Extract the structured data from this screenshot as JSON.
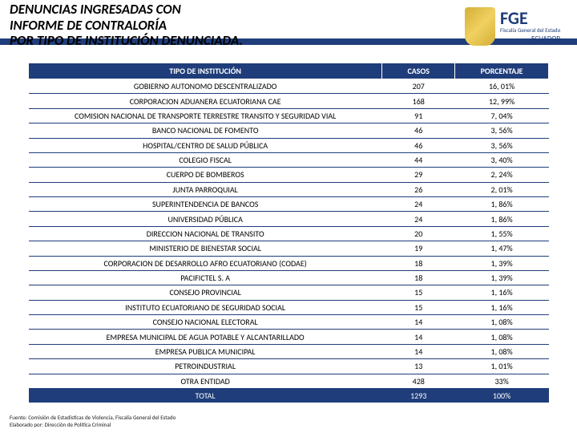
{
  "header": {
    "title_line1": "DENUNCIAS INGRESADAS CON",
    "title_line2": "INFORME DE CONTRALORÍA",
    "title_line3": "POR TIPO DE INSTITUCIÓN DENUNCIADA."
  },
  "logo": {
    "acronym": "FGE",
    "sub1": "Fiscalía General del Estado",
    "country": "ECUADOR"
  },
  "table": {
    "headers": {
      "institution": "TIPO DE INSTITUCIÓN",
      "cases": "CASOS",
      "percentage": "PORCENTAJE"
    },
    "rows": [
      {
        "inst": "GOBIERNO AUTONOMO DESCENTRALIZADO",
        "casos": "207",
        "pct": "16, 01%"
      },
      {
        "inst": "CORPORACION ADUANERA ECUATORIANA CAE",
        "casos": "168",
        "pct": "12, 99%"
      },
      {
        "inst": "COMISION NACIONAL DE TRANSPORTE TERRESTRE TRANSITO Y SEGURIDAD VIAL",
        "casos": "91",
        "pct": "7, 04%"
      },
      {
        "inst": "BANCO NACIONAL DE FOMENTO",
        "casos": "46",
        "pct": "3, 56%"
      },
      {
        "inst": "HOSPITAL/CENTRO DE SALUD PÚBLICA",
        "casos": "46",
        "pct": "3, 56%"
      },
      {
        "inst": "COLEGIO FISCAL",
        "casos": "44",
        "pct": "3, 40%"
      },
      {
        "inst": "CUERPO DE BOMBEROS",
        "casos": "29",
        "pct": "2, 24%"
      },
      {
        "inst": "JUNTA PARROQUIAL",
        "casos": "26",
        "pct": "2, 01%"
      },
      {
        "inst": "SUPERINTENDENCIA DE BANCOS",
        "casos": "24",
        "pct": "1, 86%"
      },
      {
        "inst": "UNIVERSIDAD PÚBLICA",
        "casos": "24",
        "pct": "1, 86%"
      },
      {
        "inst": "DIRECCION NACIONAL DE TRANSITO",
        "casos": "20",
        "pct": "1, 55%"
      },
      {
        "inst": "MINISTERIO DE BIENESTAR SOCIAL",
        "casos": "19",
        "pct": "1, 47%"
      },
      {
        "inst": "CORPORACION DE DESARROLLO AFRO ECUATORIANO (CODAE)",
        "casos": "18",
        "pct": "1, 39%"
      },
      {
        "inst": "PACIFICTEL S. A",
        "casos": "18",
        "pct": "1, 39%"
      },
      {
        "inst": "CONSEJO PROVINCIAL",
        "casos": "15",
        "pct": "1, 16%"
      },
      {
        "inst": "INSTITUTO ECUATORIANO DE SEGURIDAD SOCIAL",
        "casos": "15",
        "pct": "1, 16%"
      },
      {
        "inst": "CONSEJO NACIONAL ELECTORAL",
        "casos": "14",
        "pct": "1, 08%"
      },
      {
        "inst": "EMPRESA MUNICIPAL DE AGUA POTABLE Y ALCANTARILLADO",
        "casos": "14",
        "pct": "1, 08%"
      },
      {
        "inst": "EMPRESA PUBLICA MUNICIPAL",
        "casos": "14",
        "pct": "1, 08%"
      },
      {
        "inst": "PETROINDUSTRIAL",
        "casos": "13",
        "pct": "1, 01%"
      },
      {
        "inst": "OTRA ENTIDAD",
        "casos": "428",
        "pct": "33%"
      }
    ],
    "total": {
      "label": "TOTAL",
      "casos": "1293",
      "pct": "100%"
    }
  },
  "footer": {
    "line1": "Fuente: Comisión de Estadísticas de Violencia, Fiscalía General del Estado",
    "line2": "Elaborado por: Dirección de Política Criminal"
  },
  "colors": {
    "brand_blue": "#1f3d7a",
    "white": "#ffffff",
    "black": "#000000"
  }
}
